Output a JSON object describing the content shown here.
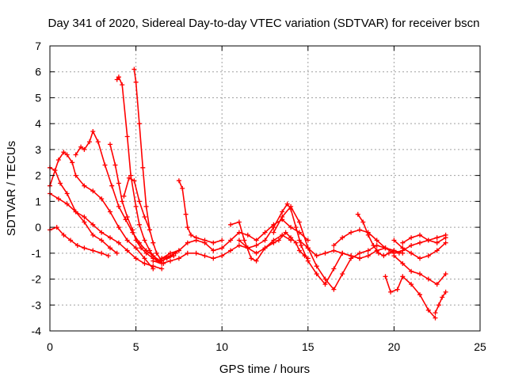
{
  "chart_data": {
    "type": "scatter",
    "title": "Day 341 of 2020, Sidereal Day-to-day VTEC variation (SDTVAR) for receiver bscn",
    "xlabel": "GPS time / hours",
    "ylabel": "SDTVAR / TECUs",
    "xlim": [
      0,
      25
    ],
    "ylim": [
      -4,
      7
    ],
    "xticks": [
      0,
      5,
      10,
      15,
      20,
      25
    ],
    "yticks": [
      -4,
      -3,
      -2,
      -1,
      0,
      1,
      2,
      3,
      4,
      5,
      6,
      7
    ],
    "grid": true,
    "marker": "plus",
    "color": "#ff0000",
    "series": [
      {
        "x": [
          0.0,
          0.3,
          0.6,
          1.0,
          1.5,
          2.0,
          2.5,
          3.0,
          3.5,
          3.9
        ],
        "y": [
          2.3,
          2.2,
          1.7,
          1.3,
          0.6,
          0.2,
          -0.3,
          -0.5,
          -0.8,
          -1.0
        ]
      },
      {
        "x": [
          0.0,
          0.5,
          0.8,
          1.0,
          1.3,
          1.5,
          2.0,
          2.5,
          3.0,
          3.5,
          4.0,
          4.5,
          5.0,
          5.5,
          6.0
        ],
        "y": [
          1.6,
          2.6,
          2.9,
          2.8,
          2.5,
          2.0,
          1.6,
          1.4,
          1.1,
          0.6,
          0.0,
          -0.5,
          -0.8,
          -1.2,
          -1.6
        ]
      },
      {
        "x": [
          0.0,
          0.5,
          1.0,
          1.5,
          2.0,
          2.5,
          3.0,
          3.5,
          4.0,
          4.5,
          5.0,
          5.5,
          6.0,
          6.5
        ],
        "y": [
          1.3,
          1.1,
          0.9,
          0.6,
          0.4,
          0.1,
          -0.2,
          -0.4,
          -0.6,
          -0.9,
          -1.2,
          -1.4,
          -1.5,
          -1.6
        ]
      },
      {
        "x": [
          0.0,
          0.4,
          0.8,
          1.2,
          1.6,
          2.0,
          2.5,
          3.0,
          3.4
        ],
        "y": [
          -0.1,
          0.0,
          -0.3,
          -0.5,
          -0.7,
          -0.8,
          -0.9,
          -1.0,
          -1.1
        ]
      },
      {
        "x": [
          1.5,
          1.8,
          2.0,
          2.3,
          2.5,
          2.8,
          3.2,
          3.6,
          4.0,
          4.4,
          4.8,
          5.2,
          5.6,
          6.0,
          6.4,
          6.8,
          7.2
        ],
        "y": [
          2.8,
          3.1,
          3.0,
          3.3,
          3.7,
          3.3,
          2.4,
          1.6,
          0.8,
          0.3,
          -0.2,
          -0.6,
          -0.9,
          -1.1,
          -1.3,
          -1.2,
          -1.1
        ]
      },
      {
        "x": [
          3.5,
          3.8,
          4.0,
          4.2,
          4.5,
          4.8,
          5.0,
          5.3,
          5.6,
          6.0,
          6.3,
          6.6
        ],
        "y": [
          3.2,
          2.4,
          1.7,
          1.0,
          0.4,
          -0.1,
          -0.5,
          -0.8,
          -1.0,
          -1.2,
          -1.3,
          -1.4
        ]
      },
      {
        "x": [
          3.9,
          4.0,
          4.2,
          4.5,
          4.7,
          5.0,
          5.2,
          5.5,
          5.8,
          6.0,
          6.3,
          6.5,
          7.0,
          7.5
        ],
        "y": [
          5.7,
          5.8,
          5.5,
          3.5,
          2.0,
          0.8,
          0.1,
          -0.5,
          -0.9,
          -1.1,
          -1.3,
          -1.2,
          -1.0,
          -0.9
        ]
      },
      {
        "x": [
          4.9,
          5.0,
          5.2,
          5.4,
          5.6,
          5.8,
          6.0,
          6.2,
          6.5,
          6.8,
          7.0,
          7.3
        ],
        "y": [
          6.1,
          5.6,
          4.0,
          2.3,
          0.8,
          -0.1,
          -0.6,
          -1.0,
          -1.3,
          -1.2,
          -1.1,
          -1.0
        ]
      },
      {
        "x": [
          4.3,
          4.6,
          4.9,
          5.2,
          5.5,
          5.8
        ],
        "y": [
          1.2,
          1.9,
          1.8,
          1.0,
          0.4,
          -0.1
        ]
      },
      {
        "x": [
          7.5,
          7.7,
          7.9,
          8.0,
          8.2,
          8.5,
          9.0,
          9.5,
          10.0
        ],
        "y": [
          1.8,
          1.5,
          0.5,
          0.0,
          -0.3,
          -0.4,
          -0.5,
          -0.6,
          -0.5
        ]
      },
      {
        "x": [
          6.5,
          7.0,
          7.5,
          8.0,
          8.5,
          9.0,
          9.5,
          10.0,
          10.5,
          11.0,
          11.5,
          12.0,
          12.5,
          13.0,
          13.5,
          14.0,
          14.5,
          15.0
        ],
        "y": [
          -1.2,
          -1.1,
          -0.9,
          -0.6,
          -0.5,
          -0.6,
          -0.9,
          -0.8,
          -0.5,
          -0.2,
          -0.3,
          -0.5,
          -0.2,
          0.1,
          0.3,
          0.0,
          -0.2,
          -0.5
        ]
      },
      {
        "x": [
          6.0,
          6.5,
          7.0,
          7.5,
          8.0,
          8.5,
          9.0,
          9.5,
          10.0,
          10.5,
          11.0,
          11.5,
          12.0,
          12.5,
          13.0,
          13.5,
          14.0
        ],
        "y": [
          -1.3,
          -1.4,
          -1.3,
          -1.2,
          -1.0,
          -1.0,
          -1.1,
          -1.2,
          -1.1,
          -0.9,
          -0.7,
          -0.8,
          -1.0,
          -0.8,
          -0.5,
          -0.3,
          -0.5
        ]
      },
      {
        "x": [
          10.5,
          11.0,
          11.3,
          11.7,
          12.0,
          12.5,
          13.0,
          13.3,
          13.7,
          14.0,
          14.3,
          14.5,
          14.8,
          15.0
        ],
        "y": [
          0.1,
          0.2,
          -0.5,
          -1.2,
          -1.3,
          -0.8,
          -0.6,
          -0.5,
          -0.2,
          -0.4,
          -0.6,
          -0.9,
          -1.1,
          -1.2
        ]
      },
      {
        "x": [
          11.0,
          11.5,
          12.0,
          12.5,
          13.0,
          13.5,
          13.8,
          14.0,
          14.3,
          14.6,
          15.0,
          15.5,
          16.0,
          16.5,
          17.0,
          17.5,
          18.0
        ],
        "y": [
          -0.5,
          -0.8,
          -0.7,
          -0.5,
          0.0,
          0.6,
          0.9,
          0.7,
          0.0,
          -0.7,
          -1.3,
          -1.8,
          -2.2,
          -1.6,
          -1.0,
          -1.1,
          -1.2
        ]
      },
      {
        "x": [
          13.0,
          13.5,
          14.0,
          14.5,
          15.0,
          15.5,
          16.0,
          16.5,
          17.0,
          17.5,
          18.0,
          18.5,
          19.0,
          19.5,
          20.0
        ],
        "y": [
          -0.2,
          0.4,
          0.8,
          0.2,
          -0.8,
          -1.5,
          -2.0,
          -2.4,
          -1.8,
          -1.2,
          -1.0,
          -0.9,
          -0.7,
          -0.8,
          -0.9
        ]
      },
      {
        "x": [
          14.5,
          15.0,
          15.5,
          16.0,
          16.5,
          17.0,
          17.5,
          18.0,
          18.5,
          19.0,
          19.5,
          20.0,
          20.5
        ],
        "y": [
          -0.5,
          -0.8,
          -1.1,
          -1.0,
          -0.9,
          -1.0,
          -1.1,
          -1.2,
          -1.1,
          -0.9,
          -0.8,
          -0.9,
          -1.0
        ]
      },
      {
        "x": [
          16.5,
          17.0,
          17.5,
          18.0,
          18.5,
          19.0,
          19.5,
          20.0,
          20.5,
          21.0,
          21.5,
          22.0,
          22.5,
          23.0
        ],
        "y": [
          -0.7,
          -0.4,
          -0.2,
          -0.1,
          -0.2,
          -0.5,
          -0.8,
          -1.0,
          -0.9,
          -0.7,
          -0.6,
          -0.5,
          -0.6,
          -0.4
        ]
      },
      {
        "x": [
          17.9,
          18.2,
          18.5,
          18.8,
          19.1,
          19.4,
          19.7,
          20.0,
          20.3
        ],
        "y": [
          0.5,
          0.2,
          -0.3,
          -0.7,
          -1.0,
          -1.1,
          -1.0,
          -0.9,
          -1.0
        ]
      },
      {
        "x": [
          19.5,
          19.8,
          20.2,
          20.5,
          21.0,
          21.5,
          22.0,
          22.4
        ],
        "y": [
          -1.9,
          -2.5,
          -2.4,
          -1.9,
          -2.2,
          -2.6,
          -3.2,
          -3.5
        ]
      },
      {
        "x": [
          20.0,
          20.5,
          21.0,
          21.5,
          22.0,
          22.5,
          23.0
        ],
        "y": [
          -1.1,
          -1.4,
          -1.7,
          -1.8,
          -2.0,
          -2.2,
          -1.8
        ]
      },
      {
        "x": [
          22.4,
          22.6,
          22.8,
          23.0
        ],
        "y": [
          -3.3,
          -3.0,
          -2.7,
          -2.5
        ]
      },
      {
        "x": [
          20.0,
          20.5,
          21.0,
          21.5,
          22.0,
          22.5,
          23.0
        ],
        "y": [
          -0.5,
          -0.8,
          -1.0,
          -1.2,
          -1.1,
          -0.9,
          -0.6
        ]
      },
      {
        "x": [
          20.5,
          21.0,
          21.5,
          22.0,
          22.5,
          23.0
        ],
        "y": [
          -0.6,
          -0.4,
          -0.3,
          -0.5,
          -0.4,
          -0.3
        ]
      }
    ]
  }
}
